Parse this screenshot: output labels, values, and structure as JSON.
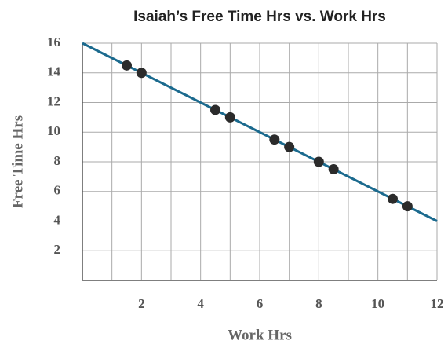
{
  "chart_data": {
    "type": "scatter",
    "title": "Isaiah’s Free Time Hrs vs. Work Hrs",
    "x_label": "Work Hrs",
    "y_label": "Free Time Hrs",
    "series": [
      {
        "type": "scatter",
        "color": "#2b2b2b",
        "x": [
          1.5,
          2,
          4.5,
          5,
          6.5,
          7,
          8,
          8.5,
          10.5,
          11
        ],
        "values": [
          14.5,
          14,
          11.5,
          11,
          9.5,
          9,
          8,
          7.5,
          5.5,
          5
        ]
      },
      {
        "type": "line",
        "color": "#1b6a8e",
        "x": [
          0,
          12
        ],
        "values": [
          16,
          4
        ]
      }
    ],
    "xlim": [
      0,
      12
    ],
    "ylim": [
      0,
      16
    ],
    "xticks": [
      2,
      4,
      6,
      8,
      10,
      12
    ],
    "x_minor_ticks": [
      1,
      3,
      5,
      7,
      9,
      11
    ],
    "yticks": [
      2,
      4,
      6,
      8,
      10,
      12,
      14,
      16
    ],
    "grid": true
  }
}
